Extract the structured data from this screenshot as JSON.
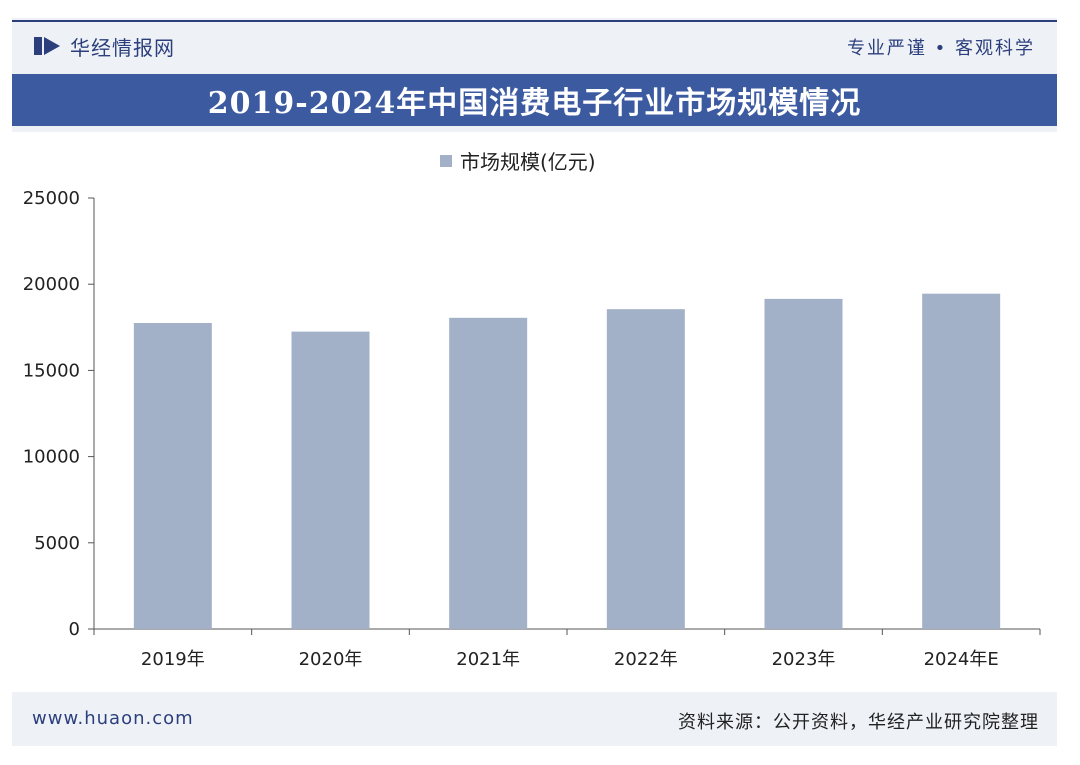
{
  "header": {
    "brand": "华经情报网",
    "slogan": "专业严谨 • 客观科学"
  },
  "title": "2019-2024年中国消费电子行业市场规模情况",
  "footer": {
    "url": "www.huaon.com",
    "source": "资料来源：公开资料，华经产业研究院整理"
  },
  "colors": {
    "bar": "#a2b0c8",
    "title_band": "#3b5aa0",
    "brand": "#2c3f7c"
  },
  "chart_data": {
    "type": "bar",
    "categories": [
      "2019年",
      "2020年",
      "2021年",
      "2022年",
      "2023年",
      "2024年E"
    ],
    "series": [
      {
        "name": "市场规模(亿元)",
        "values": [
          17750,
          17250,
          18050,
          18550,
          19150,
          19450
        ]
      }
    ],
    "ylim": [
      0,
      25000
    ],
    "yticks": [
      0,
      5000,
      10000,
      15000,
      20000,
      25000
    ],
    "title": "2019-2024年中国消费电子行业市场规模情况",
    "xlabel": "",
    "ylabel": "",
    "grid": false,
    "legend": "top-center"
  }
}
